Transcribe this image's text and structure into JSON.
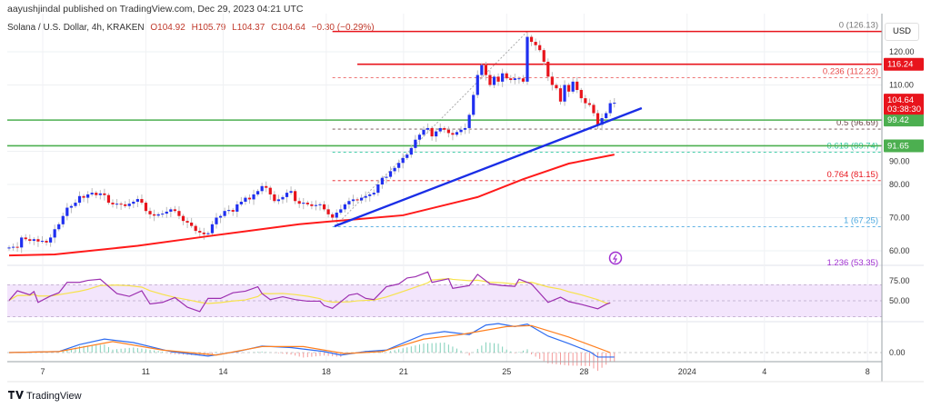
{
  "header": {
    "published": "aayushjindal published on TradingView.com, Dec 29, 2023 04:21 UTC"
  },
  "legend": {
    "symbol": "Solana / U.S. Dollar, 4h, KRAKEN",
    "open": "O104.92",
    "high": "H105.79",
    "low": "L104.37",
    "close": "C104.64",
    "change": "−0.30 (−0.29%)"
  },
  "currency_button": "USD",
  "footer": {
    "logo_text": "TradingView"
  },
  "colors": {
    "up": "#1f2ff0",
    "down": "#e8141c",
    "ma": "#ff1a1a",
    "support": "#4caf50",
    "trend": "#1a2ee6",
    "rsi": "#9c2fb0",
    "rsi_ma": "#f6e24a",
    "macd": "#2e6cf0",
    "signal": "#ff7f1e"
  },
  "chart_data": {
    "type": "candlestick",
    "title": "Solana / U.S. Dollar, 4h, KRAKEN",
    "ylim": [
      50,
      130
    ],
    "price_ticks": [
      "120.00",
      "110.00",
      "90.00",
      "80.00",
      "70.00",
      "60.00"
    ],
    "price_tick_values": [
      120,
      110,
      90,
      80,
      70,
      60
    ],
    "x_ticks": [
      {
        "label": "7",
        "day": 7
      },
      {
        "label": "11",
        "day": 11
      },
      {
        "label": "14",
        "day": 14
      },
      {
        "label": "18",
        "day": 18
      },
      {
        "label": "21",
        "day": 21
      },
      {
        "label": "25",
        "day": 25
      },
      {
        "label": "28",
        "day": 28
      },
      {
        "label": "2024",
        "day": 32
      },
      {
        "label": "4",
        "day": 35
      },
      {
        "label": "8",
        "day": 39
      }
    ],
    "closes": [
      61,
      61.2,
      61,
      64,
      63.5,
      63,
      63.5,
      62.8,
      63,
      62.5,
      64,
      66.5,
      68,
      70.5,
      73,
      73.5,
      74.5,
      76.5,
      76,
      77,
      77.5,
      76.8,
      77.3,
      76.8,
      74.5,
      74,
      74.2,
      74,
      73.5,
      74.2,
      74.8,
      75.6,
      74.5,
      72,
      71,
      70.6,
      71,
      71.2,
      71.8,
      72.5,
      72,
      70.5,
      69,
      68.5,
      67.5,
      66,
      65.5,
      65,
      65.3,
      68,
      70,
      70.5,
      72,
      72.3,
      71.8,
      74,
      74.8,
      76,
      75.5,
      77,
      78,
      79.5,
      79,
      77,
      75,
      75.5,
      76.2,
      77.5,
      78,
      75,
      74.2,
      74.5,
      74,
      73.5,
      73.8,
      74,
      72.5,
      71,
      70,
      71.5,
      72.5,
      74,
      75,
      75.5,
      75.2,
      76,
      76.5,
      77,
      77.5,
      80,
      82,
      82.3,
      84,
      85,
      86.5,
      88,
      89,
      91,
      93.5,
      95,
      96.5,
      97,
      94.5,
      96,
      97,
      96.5,
      95.5,
      95,
      95.8,
      96.5,
      97,
      101,
      107,
      113,
      116,
      113,
      110,
      112.5,
      111,
      113.5,
      112,
      111.5,
      112,
      112,
      111,
      124.5,
      123,
      122,
      120.5,
      117,
      112.5,
      110,
      109,
      105,
      110,
      108,
      111,
      108.5,
      106,
      104.5,
      104,
      101.5,
      98,
      100,
      101.5,
      104.5,
      104.64
    ],
    "moving_average": [
      [
        0,
        58.6
      ],
      [
        11,
        58.9
      ],
      [
        31,
        61.5
      ],
      [
        48,
        64.4
      ],
      [
        70,
        68
      ],
      [
        77,
        68.8
      ],
      [
        95,
        70.7
      ],
      [
        113,
        76.2
      ],
      [
        124,
        81.6
      ],
      [
        135,
        86.3
      ],
      [
        146,
        89
      ]
    ],
    "trendline": [
      [
        78.5,
        67.4
      ],
      [
        152.6,
        103
      ]
    ],
    "horizontal_levels": [
      {
        "price": 126.13,
        "color": "#e8141c",
        "from": 78
      },
      {
        "price": 116.24,
        "color": "#e8141c",
        "from": 84,
        "label": "116.24"
      },
      {
        "price": 99.42,
        "color": "#4caf50",
        "from": 0,
        "label": "99.42"
      },
      {
        "price": 91.65,
        "color": "#4caf50",
        "from": 0,
        "label": "91.65"
      }
    ],
    "last_price": {
      "value": 104.64,
      "label": "104.64",
      "countdown": "03:38:30"
    },
    "fibonacci": [
      {
        "label": "0 (126.13)",
        "price": 126.13,
        "color": "#777777"
      },
      {
        "label": "0.236 (112.23)",
        "price": 112.23,
        "color": "#e84a4a"
      },
      {
        "label": "0.5 (96.69)",
        "price": 96.69,
        "color": "#6d4a4a"
      },
      {
        "label": "0.618 (89.74)",
        "price": 89.74,
        "color": "#2fc9a0"
      },
      {
        "label": "0.764 (81.15)",
        "price": 81.15,
        "color": "#e8141c"
      },
      {
        "label": "1 (67.25)",
        "price": 67.25,
        "color": "#4aa8e0"
      },
      {
        "label": "1.236 (53.35)",
        "price": 53.35,
        "color": "#a02fd0"
      }
    ],
    "rsi": {
      "ticks": [
        "75.00",
        "50.00"
      ],
      "band": [
        30,
        70
      ],
      "points": [
        [
          0,
          50.5
        ],
        [
          2,
          62.5
        ],
        [
          5,
          57.5
        ],
        [
          6,
          61.5
        ],
        [
          7,
          48
        ],
        [
          10,
          56
        ],
        [
          12,
          60
        ],
        [
          14,
          73
        ],
        [
          17,
          73
        ],
        [
          19,
          75.5
        ],
        [
          22,
          77
        ],
        [
          26,
          59
        ],
        [
          29,
          55.5
        ],
        [
          32,
          62.5
        ],
        [
          34,
          46
        ],
        [
          37,
          48
        ],
        [
          40,
          54
        ],
        [
          43,
          42
        ],
        [
          46,
          36.5
        ],
        [
          48,
          53
        ],
        [
          51,
          53
        ],
        [
          54,
          60
        ],
        [
          57,
          62
        ],
        [
          60,
          67.5
        ],
        [
          61,
          59
        ],
        [
          63,
          51.5
        ],
        [
          66,
          55
        ],
        [
          69,
          51.5
        ],
        [
          72,
          49.5
        ],
        [
          75,
          49.5
        ],
        [
          76,
          44
        ],
        [
          78,
          40.5
        ],
        [
          82,
          57
        ],
        [
          84,
          59
        ],
        [
          86,
          53
        ],
        [
          88,
          51.5
        ],
        [
          91,
          67.5
        ],
        [
          94,
          71
        ],
        [
          96,
          78.5
        ],
        [
          98,
          80
        ],
        [
          101,
          86
        ],
        [
          102,
          73
        ],
        [
          106,
          77.5
        ],
        [
          107,
          65.5
        ],
        [
          111,
          69
        ],
        [
          113,
          83
        ],
        [
          116,
          71
        ],
        [
          119,
          69
        ],
        [
          122,
          68
        ],
        [
          123,
          77
        ],
        [
          126,
          71
        ],
        [
          130,
          48
        ],
        [
          133,
          54.5
        ],
        [
          135,
          49
        ],
        [
          138,
          45.5
        ],
        [
          142,
          40
        ],
        [
          144,
          45.5
        ],
        [
          145,
          47.5
        ]
      ]
    },
    "macd": {
      "ticks": [
        "0.00"
      ],
      "macd_line": [
        [
          0,
          0
        ],
        [
          12,
          0.2
        ],
        [
          17,
          1.6
        ],
        [
          23,
          2.7
        ],
        [
          30,
          2
        ],
        [
          39,
          0.2
        ],
        [
          48,
          -0.7
        ],
        [
          55,
          0.2
        ],
        [
          61,
          1.3
        ],
        [
          68,
          1
        ],
        [
          76,
          0.2
        ],
        [
          80,
          -0.5
        ],
        [
          86,
          0.2
        ],
        [
          91,
          0.5
        ],
        [
          100,
          3.6
        ],
        [
          105,
          4.2
        ],
        [
          111,
          3.6
        ],
        [
          115,
          5.5
        ],
        [
          118,
          5.8
        ],
        [
          122,
          5.2
        ],
        [
          125,
          5.7
        ],
        [
          130,
          3.3
        ],
        [
          135,
          1.8
        ],
        [
          140,
          0.2
        ],
        [
          142,
          -0.9
        ],
        [
          146,
          -0.9
        ]
      ],
      "signal_line": [
        [
          0,
          0
        ],
        [
          12,
          0.2
        ],
        [
          25,
          2.2
        ],
        [
          37,
          0.5
        ],
        [
          50,
          -0.5
        ],
        [
          61,
          1.2
        ],
        [
          71,
          1.2
        ],
        [
          81,
          -0.2
        ],
        [
          90,
          0.2
        ],
        [
          100,
          2.7
        ],
        [
          109,
          3.6
        ],
        [
          120,
          5.2
        ],
        [
          126,
          5.4
        ],
        [
          135,
          3.1
        ],
        [
          145,
          0
        ]
      ]
    }
  }
}
